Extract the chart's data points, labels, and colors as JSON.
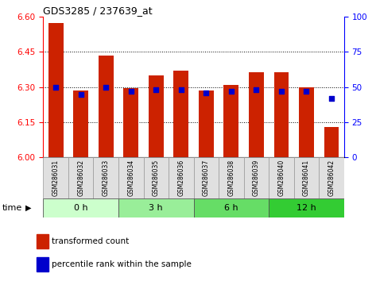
{
  "title": "GDS3285 / 237639_at",
  "samples": [
    "GSM286031",
    "GSM286032",
    "GSM286033",
    "GSM286034",
    "GSM286035",
    "GSM286036",
    "GSM286037",
    "GSM286038",
    "GSM286039",
    "GSM286040",
    "GSM286041",
    "GSM286042"
  ],
  "group_labels": [
    "0 h",
    "3 h",
    "6 h",
    "12 h"
  ],
  "group_colors": [
    "#ccffcc",
    "#ccffcc",
    "#99ee99",
    "#99ee99"
  ],
  "bar_values": [
    6.575,
    6.285,
    6.435,
    6.295,
    6.35,
    6.37,
    6.285,
    6.31,
    6.365,
    6.365,
    6.3,
    6.13
  ],
  "percentile_values": [
    50,
    45,
    50,
    47,
    48,
    48,
    46,
    47,
    48,
    47,
    47,
    42
  ],
  "ylim_left": [
    6.0,
    6.6
  ],
  "ylim_right": [
    0,
    100
  ],
  "yticks_left": [
    6.0,
    6.15,
    6.3,
    6.45,
    6.6
  ],
  "yticks_right": [
    0,
    25,
    50,
    75,
    100
  ],
  "bar_color": "#cc2200",
  "dot_color": "#0000cc",
  "label_bar": "transformed count",
  "label_dot": "percentile rank within the sample",
  "time_label": "time"
}
